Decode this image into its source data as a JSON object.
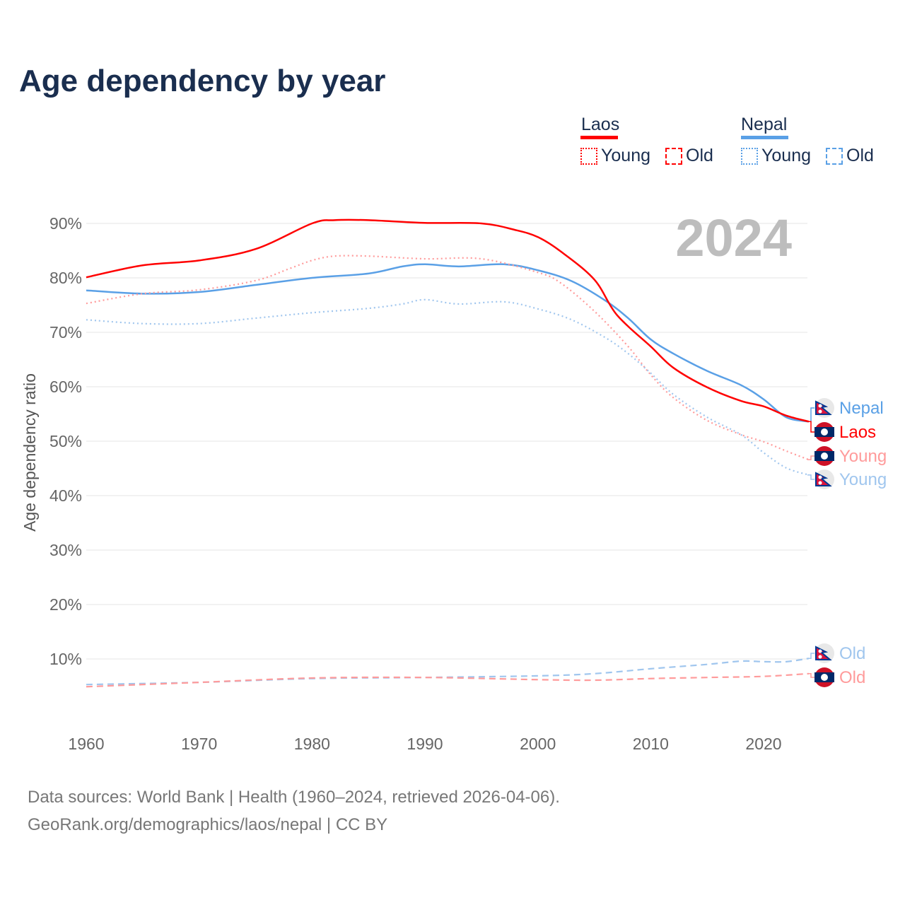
{
  "title": "Age dependency by year",
  "legend": {
    "groups": [
      {
        "country": "Laos",
        "color": "#ff0000",
        "items": [
          "Young",
          "Old"
        ]
      },
      {
        "country": "Nepal",
        "color": "#5aa0e6",
        "items": [
          "Young",
          "Old"
        ]
      }
    ]
  },
  "footer": {
    "line1": "Data sources: World Bank | Health (1960–2024, retrieved 2026-04-06).",
    "line2": "GeoRank.org/demographics/laos/nepal | CC BY"
  },
  "chart_data": {
    "type": "line",
    "title": "Age dependency by year",
    "xlabel": "",
    "ylabel": "Age dependency ratio",
    "year_label": "2024",
    "xlim": [
      1960,
      2024
    ],
    "ylim": [
      0,
      95
    ],
    "x_ticks": [
      "1960",
      "1970",
      "1980",
      "1990",
      "2000",
      "2010",
      "2020"
    ],
    "y_ticks": [
      "10%",
      "20%",
      "30%",
      "40%",
      "50%",
      "60%",
      "70%",
      "80%",
      "90%"
    ],
    "grid": true,
    "series": [
      {
        "name": "Nepal",
        "country": "Nepal",
        "label": "Nepal",
        "style": "solid",
        "color": "#5aa0e6",
        "flag": "nepal",
        "points": [
          [
            1960,
            77.7
          ],
          [
            1965,
            77.1
          ],
          [
            1970,
            77.4
          ],
          [
            1975,
            78.7
          ],
          [
            1980,
            80
          ],
          [
            1985,
            80.8
          ],
          [
            1988,
            82.1
          ],
          [
            1990,
            82.5
          ],
          [
            1993,
            82.1
          ],
          [
            1997,
            82.5
          ],
          [
            2000,
            81.4
          ],
          [
            2003,
            79.4
          ],
          [
            2006,
            75.8
          ],
          [
            2008,
            72.6
          ],
          [
            2010,
            68.7
          ],
          [
            2012,
            66.1
          ],
          [
            2015,
            62.9
          ],
          [
            2018,
            60.3
          ],
          [
            2020,
            57.7
          ],
          [
            2022,
            54.4
          ],
          [
            2024,
            53.6
          ]
        ]
      },
      {
        "name": "Laos",
        "country": "Laos",
        "label": "Laos",
        "style": "solid",
        "color": "#ff0000",
        "flag": "laos",
        "points": [
          [
            1960,
            80.1
          ],
          [
            1965,
            82.3
          ],
          [
            1970,
            83.2
          ],
          [
            1975,
            85.3
          ],
          [
            1980,
            90
          ],
          [
            1982,
            90.6
          ],
          [
            1985,
            90.6
          ],
          [
            1990,
            90.1
          ],
          [
            1995,
            90
          ],
          [
            1998,
            88.8
          ],
          [
            2000,
            87.5
          ],
          [
            2002,
            84.9
          ],
          [
            2005,
            79.7
          ],
          [
            2007,
            73.2
          ],
          [
            2010,
            67.4
          ],
          [
            2012,
            63.5
          ],
          [
            2015,
            59.9
          ],
          [
            2018,
            57.4
          ],
          [
            2020,
            56.4
          ],
          [
            2022,
            54.7
          ],
          [
            2024,
            53.6
          ]
        ]
      },
      {
        "name": "Laos Young",
        "country": "Laos",
        "label": "Young",
        "style": "dotted",
        "color": "#ff9b9b",
        "flag": "laos",
        "points": [
          [
            1960,
            75.3
          ],
          [
            1965,
            77.1
          ],
          [
            1970,
            77.8
          ],
          [
            1975,
            79.5
          ],
          [
            1978,
            81.7
          ],
          [
            1980,
            83.2
          ],
          [
            1982,
            84
          ],
          [
            1985,
            84
          ],
          [
            1990,
            83.5
          ],
          [
            1995,
            83.5
          ],
          [
            2000,
            81
          ],
          [
            2002,
            79.1
          ],
          [
            2005,
            73.9
          ],
          [
            2008,
            67.4
          ],
          [
            2010,
            62.2
          ],
          [
            2012,
            58
          ],
          [
            2015,
            53.8
          ],
          [
            2018,
            51.2
          ],
          [
            2020,
            49.9
          ],
          [
            2022,
            48.2
          ],
          [
            2024,
            46.6
          ]
        ]
      },
      {
        "name": "Nepal Young",
        "country": "Nepal",
        "label": "Young",
        "style": "dotted",
        "color": "#a0c6ee",
        "flag": "nepal",
        "points": [
          [
            1960,
            72.3
          ],
          [
            1965,
            71.6
          ],
          [
            1970,
            71.6
          ],
          [
            1975,
            72.6
          ],
          [
            1980,
            73.6
          ],
          [
            1985,
            74.4
          ],
          [
            1988,
            75.2
          ],
          [
            1990,
            76
          ],
          [
            1993,
            75.2
          ],
          [
            1997,
            75.6
          ],
          [
            2000,
            74.3
          ],
          [
            2003,
            72.3
          ],
          [
            2006,
            69
          ],
          [
            2008,
            66.1
          ],
          [
            2010,
            62.5
          ],
          [
            2012,
            58.6
          ],
          [
            2015,
            54.4
          ],
          [
            2018,
            51.2
          ],
          [
            2020,
            47.9
          ],
          [
            2022,
            45.1
          ],
          [
            2024,
            43.8
          ]
        ]
      },
      {
        "name": "Nepal Old",
        "country": "Nepal",
        "label": "Old",
        "style": "dashed",
        "color": "#a0c6ee",
        "flag": "nepal",
        "points": [
          [
            1960,
            5.3
          ],
          [
            1970,
            5.7
          ],
          [
            1980,
            6.4
          ],
          [
            1990,
            6.6
          ],
          [
            2000,
            6.9
          ],
          [
            2005,
            7.3
          ],
          [
            2010,
            8.2
          ],
          [
            2015,
            9
          ],
          [
            2018,
            9.6
          ],
          [
            2020,
            9.5
          ],
          [
            2022,
            9.5
          ],
          [
            2024,
            10.1
          ]
        ]
      },
      {
        "name": "Laos Old",
        "country": "Laos",
        "label": "Old",
        "style": "dashed",
        "color": "#ff9b9b",
        "flag": "laos",
        "points": [
          [
            1960,
            4.9
          ],
          [
            1970,
            5.7
          ],
          [
            1980,
            6.5
          ],
          [
            1990,
            6.6
          ],
          [
            2000,
            6.2
          ],
          [
            2005,
            6.1
          ],
          [
            2010,
            6.4
          ],
          [
            2015,
            6.6
          ],
          [
            2020,
            6.8
          ],
          [
            2024,
            7.3
          ]
        ]
      }
    ]
  }
}
